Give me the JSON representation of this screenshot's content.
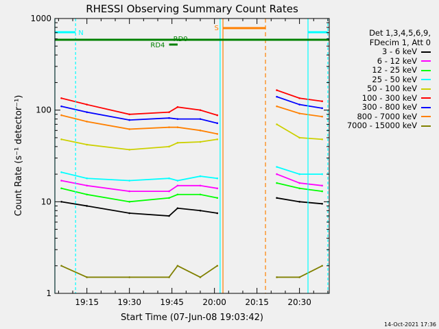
{
  "chart_data": {
    "type": "line",
    "title": "RHESSI Observing Summary Count Rates",
    "xlabel": "Start Time (07-Jun-08 19:03:42)",
    "ylabel": "Count Rate (s⁻¹ detector⁻¹)",
    "y_scale": "log",
    "ylim": [
      1,
      1000
    ],
    "xlim": [
      "19:03:42",
      "20:40:30"
    ],
    "x_ticks": [
      "19:15",
      "19:30",
      "19:45",
      "20:00",
      "20:15",
      "20:30"
    ],
    "y_ticks": [
      "1",
      "10",
      "100",
      "1000"
    ],
    "legend": {
      "header": [
        "Det 1,3,4,5,6,9,",
        "FDecim 1, Att 0"
      ],
      "placement": "right"
    },
    "series": [
      {
        "name": "3 - 6 keV",
        "color": "#000000",
        "x": [
          "19:06",
          "19:15",
          "19:30",
          "19:44",
          "19:47",
          "19:55",
          "20:01",
          "20:22",
          "20:30",
          "20:38"
        ],
        "values": [
          10,
          9,
          7.5,
          7,
          8.5,
          8,
          7.5,
          11,
          10,
          9.5
        ]
      },
      {
        "name": "6 - 12 keV",
        "color": "#ff00ff",
        "x": [
          "19:06",
          "19:15",
          "19:30",
          "19:44",
          "19:47",
          "19:55",
          "20:01",
          "20:22",
          "20:30",
          "20:38"
        ],
        "values": [
          17,
          15,
          13,
          13,
          15,
          15,
          14,
          20,
          16,
          15
        ]
      },
      {
        "name": "12 - 25 keV",
        "color": "#00ff00",
        "x": [
          "19:06",
          "19:15",
          "19:30",
          "19:44",
          "19:47",
          "19:55",
          "20:01",
          "20:22",
          "20:30",
          "20:38"
        ],
        "values": [
          14,
          12,
          10,
          11,
          12,
          12,
          11,
          16,
          14,
          13
        ]
      },
      {
        "name": "25 - 50 keV",
        "color": "#00ffff",
        "x": [
          "19:06",
          "19:15",
          "19:30",
          "19:44",
          "19:47",
          "19:55",
          "20:01",
          "20:22",
          "20:30",
          "20:38"
        ],
        "values": [
          21,
          18,
          17,
          18,
          17,
          19,
          18,
          24,
          20,
          20
        ]
      },
      {
        "name": "50 - 100 keV",
        "color": "#ccd000",
        "x": [
          "19:06",
          "19:15",
          "19:30",
          "19:44",
          "19:47",
          "19:55",
          "20:01",
          "20:22",
          "20:30",
          "20:38"
        ],
        "values": [
          48,
          42,
          37,
          40,
          44,
          45,
          48,
          70,
          50,
          48
        ]
      },
      {
        "name": "100 - 300 keV",
        "color": "#ff0000",
        "x": [
          "19:06",
          "19:15",
          "19:30",
          "19:44",
          "19:47",
          "19:55",
          "20:01",
          "20:22",
          "20:30",
          "20:38"
        ],
        "values": [
          135,
          115,
          90,
          95,
          108,
          100,
          88,
          165,
          135,
          125
        ]
      },
      {
        "name": "300 - 800 keV",
        "color": "#0000ff",
        "x": [
          "19:06",
          "19:15",
          "19:30",
          "19:44",
          "19:47",
          "19:55",
          "20:01",
          "20:22",
          "20:30",
          "20:38"
        ],
        "values": [
          110,
          95,
          78,
          82,
          80,
          80,
          72,
          140,
          115,
          105
        ]
      },
      {
        "name": "800 - 7000 keV",
        "color": "#ff8000",
        "x": [
          "19:06",
          "19:15",
          "19:30",
          "19:44",
          "19:47",
          "19:55",
          "20:01",
          "20:22",
          "20:30",
          "20:38"
        ],
        "values": [
          88,
          75,
          62,
          65,
          65,
          60,
          55,
          110,
          92,
          85
        ]
      },
      {
        "name": "7000 - 15000 keV",
        "color": "#808000",
        "x": [
          "19:06",
          "19:15",
          "19:30",
          "19:44",
          "19:47",
          "19:55",
          "20:01",
          "20:22",
          "20:30",
          "20:38"
        ],
        "values": [
          2,
          1.5,
          1.5,
          1.5,
          2,
          1.5,
          2,
          1.5,
          1.5,
          2
        ]
      }
    ],
    "annotations": [
      {
        "text": "N",
        "color": "#00ffff"
      },
      {
        "text": "S",
        "color": "#ff8000"
      },
      {
        "text": "RD0",
        "color": "#008000"
      },
      {
        "text": "RD4",
        "color": "#008000"
      }
    ]
  },
  "footer_date": "14-Oct-2021 17:36"
}
